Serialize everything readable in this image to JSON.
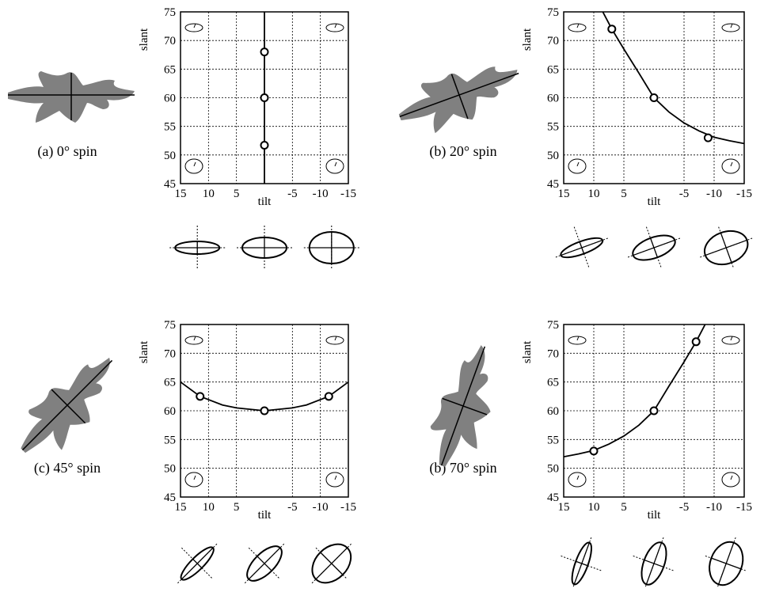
{
  "chart_data": [
    {
      "type": "line",
      "caption": "(a) 0° spin",
      "xlabel": "tilt",
      "ylabel": "slant",
      "xlim": [
        15,
        -15
      ],
      "ylim": [
        45,
        75
      ],
      "xticks": [
        15,
        10,
        5,
        -5,
        -10,
        -15
      ],
      "yticks": [
        45,
        50,
        55,
        60,
        65,
        70,
        75
      ],
      "grid": true,
      "curve": {
        "x": [
          0,
          0
        ],
        "y": [
          45,
          75
        ]
      },
      "points": {
        "x": [
          0,
          0,
          0
        ],
        "y": [
          68,
          60,
          51.7
        ]
      }
    },
    {
      "type": "line",
      "caption": "(b) 20° spin",
      "xlabel": "tilt",
      "ylabel": "slant",
      "xlim": [
        15,
        -15
      ],
      "ylim": [
        45,
        75
      ],
      "xticks": [
        15,
        10,
        5,
        -5,
        -10,
        -15
      ],
      "yticks": [
        45,
        50,
        55,
        60,
        65,
        70,
        75
      ],
      "grid": true,
      "curve": {
        "x": [
          8.5,
          7,
          5,
          2.5,
          0,
          -2.5,
          -5,
          -7.5,
          -10,
          -12.5,
          -15
        ],
        "y": [
          75,
          72,
          68.5,
          64.3,
          60,
          57.5,
          55.6,
          54.2,
          53.1,
          52.5,
          52
        ]
      },
      "points": {
        "x": [
          7,
          0,
          -9
        ],
        "y": [
          72,
          60,
          53
        ]
      }
    },
    {
      "type": "line",
      "caption": "(c) 45° spin",
      "xlabel": "tilt",
      "ylabel": "slant",
      "xlim": [
        15,
        -15
      ],
      "ylim": [
        45,
        75
      ],
      "xticks": [
        15,
        10,
        5,
        -5,
        -10,
        -15
      ],
      "yticks": [
        45,
        50,
        55,
        60,
        65,
        70,
        75
      ],
      "grid": true,
      "curve": {
        "x": [
          15,
          11.5,
          7.5,
          5,
          0,
          -5,
          -7.5,
          -11.5,
          -15
        ],
        "y": [
          65,
          62.5,
          61,
          60.5,
          60,
          60.5,
          61,
          62.5,
          65
        ]
      },
      "points": {
        "x": [
          11.5,
          0,
          -11.5
        ],
        "y": [
          62.5,
          60,
          62.5
        ]
      }
    },
    {
      "type": "line",
      "caption": "(b) 70° spin",
      "xlabel": "tilt",
      "ylabel": "slant",
      "xlim": [
        15,
        -15
      ],
      "ylim": [
        45,
        75
      ],
      "xticks": [
        15,
        10,
        5,
        -5,
        -10,
        -15
      ],
      "yticks": [
        45,
        50,
        55,
        60,
        65,
        70,
        75
      ],
      "grid": true,
      "curve": {
        "x": [
          15,
          12.5,
          10,
          7.5,
          5,
          2.5,
          0,
          -2.5,
          -5,
          -7,
          -8.5
        ],
        "y": [
          52,
          52.5,
          53.1,
          54.2,
          55.6,
          57.5,
          60,
          64.3,
          68.5,
          72,
          75
        ]
      },
      "points": {
        "x": [
          10,
          0,
          -7
        ],
        "y": [
          53,
          60,
          72
        ]
      }
    }
  ]
}
